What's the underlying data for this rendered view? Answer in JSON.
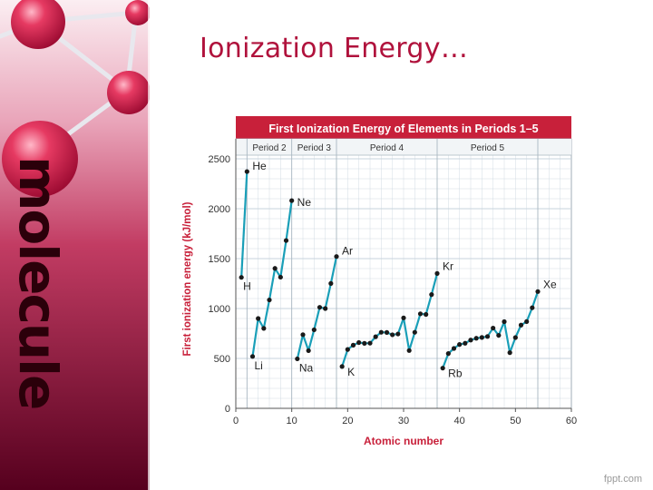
{
  "slide": {
    "title": "Ionization Energy…",
    "watermark": "fppt.com",
    "brand_text": "molecule"
  },
  "colors": {
    "sidebar_top": "#f9e6ec",
    "sidebar_bottom": "#4a0018",
    "ball": "#e0244f",
    "title": "#b0123c",
    "chart_header": "#c8203a",
    "line": "#1a9fb8",
    "point": "#1a1a1a",
    "grid": "#c7d3dc"
  },
  "chart_data": {
    "type": "line",
    "title": "First Ionization Energy of Elements in Periods 1–5",
    "xlabel": "Atomic number",
    "ylabel": "First ionization energy (kJ/mol)",
    "xlim": [
      0,
      60
    ],
    "ylim": [
      0,
      2700
    ],
    "xticks": [
      0,
      10,
      20,
      30,
      40,
      50,
      60
    ],
    "yticks": [
      0,
      500,
      1000,
      1500,
      2000,
      2500
    ],
    "grid": true,
    "periods": [
      {
        "label": "Period 2",
        "from": 2,
        "to": 10
      },
      {
        "label": "Period 3",
        "from": 10,
        "to": 18
      },
      {
        "label": "Period 4",
        "from": 18,
        "to": 36
      },
      {
        "label": "Period 5",
        "from": 36,
        "to": 54
      }
    ],
    "series": [
      {
        "x": [
          1,
          2
        ],
        "y": [
          1312,
          2372
        ]
      },
      {
        "x": [
          3,
          4,
          5,
          6,
          7,
          8,
          9,
          10
        ],
        "y": [
          520,
          900,
          801,
          1086,
          1402,
          1314,
          1681,
          2081
        ]
      },
      {
        "x": [
          11,
          12,
          13,
          14,
          15,
          16,
          17,
          18
        ],
        "y": [
          496,
          738,
          578,
          787,
          1012,
          1000,
          1251,
          1521
        ]
      },
      {
        "x": [
          19,
          20,
          21,
          22,
          23,
          24,
          25,
          26,
          27,
          28,
          29,
          30,
          31,
          32,
          33,
          34,
          35,
          36
        ],
        "y": [
          419,
          590,
          633,
          659,
          651,
          653,
          717,
          762,
          760,
          737,
          745,
          906,
          579,
          762,
          947,
          941,
          1140,
          1351
        ]
      },
      {
        "x": [
          37,
          38,
          39,
          40,
          41,
          42,
          43,
          44,
          45,
          46,
          47,
          48,
          49,
          50,
          51,
          52,
          53,
          54
        ],
        "y": [
          403,
          549,
          600,
          640,
          652,
          684,
          702,
          710,
          720,
          804,
          731,
          868,
          558,
          709,
          834,
          869,
          1008,
          1170
        ]
      }
    ],
    "annotations": [
      {
        "text": "H",
        "x": 1,
        "y": 1312
      },
      {
        "text": "He",
        "x": 2,
        "y": 2372
      },
      {
        "text": "Li",
        "x": 3,
        "y": 520
      },
      {
        "text": "Ne",
        "x": 10,
        "y": 2081
      },
      {
        "text": "Na",
        "x": 11,
        "y": 496
      },
      {
        "text": "Ar",
        "x": 18,
        "y": 1521
      },
      {
        "text": "K",
        "x": 19,
        "y": 419
      },
      {
        "text": "Kr",
        "x": 36,
        "y": 1351
      },
      {
        "text": "Rb",
        "x": 37,
        "y": 403
      },
      {
        "text": "Xe",
        "x": 54,
        "y": 1170
      }
    ]
  }
}
